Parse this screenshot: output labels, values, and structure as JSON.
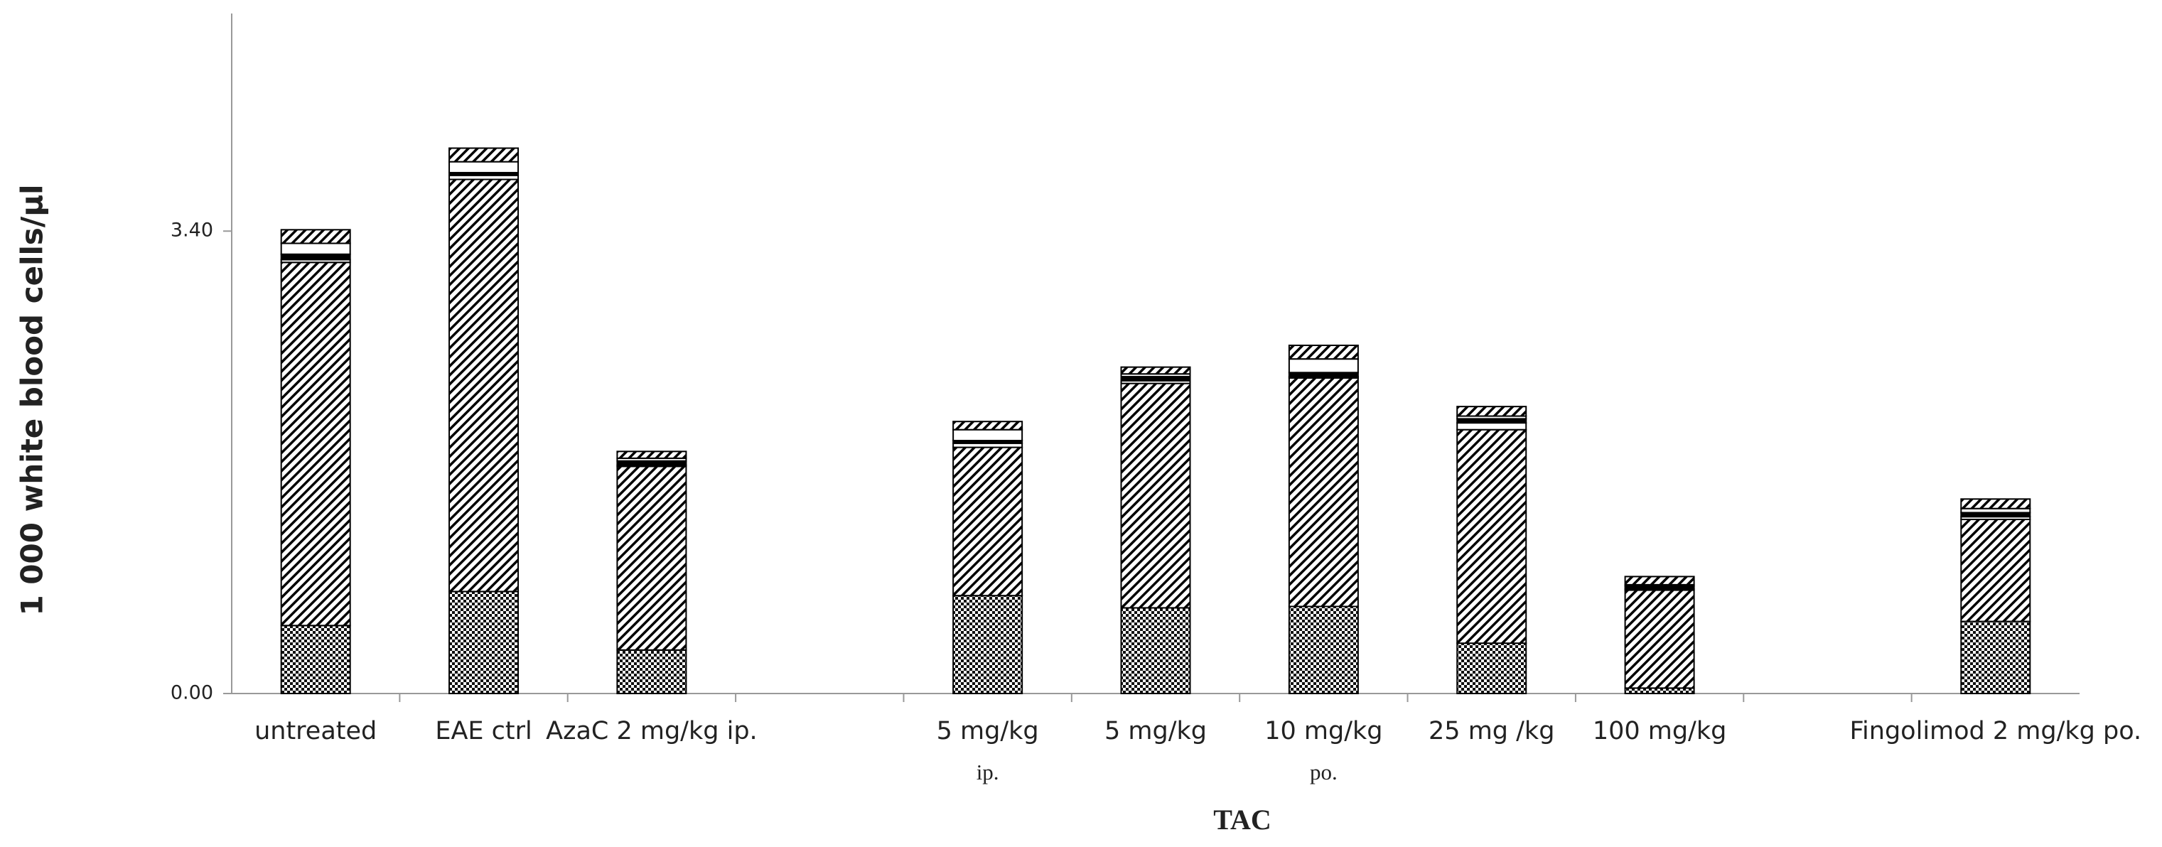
{
  "chart_data": {
    "type": "stacked-bar",
    "y_label": "1 000 white blood cells/µl",
    "x_label": "TAC",
    "categories": [
      "untreated",
      "EAE ctrl",
      "AzaC 2 mg/kg ip.",
      null,
      "5 mg/kg",
      "5 mg/kg",
      "10 mg/kg",
      "25 mg /kg",
      "100 mg/kg",
      null,
      "Fingolimod 2 mg/kg po."
    ],
    "category_sublabels": [
      null,
      null,
      null,
      null,
      "ip.",
      null,
      "po.",
      null,
      null,
      null,
      null
    ],
    "series": [
      {
        "color": "#000000",
        "pattern": "crosshatch",
        "values": [
          0.5,
          0.75,
          0.32,
          null,
          0.72,
          0.63,
          0.64,
          0.37,
          0.04,
          null,
          0.53
        ]
      },
      {
        "color": "#000000",
        "pattern": "diagonal",
        "values": [
          2.67,
          3.03,
          1.35,
          null,
          1.09,
          1.65,
          1.68,
          1.57,
          0.72,
          null,
          0.75
        ]
      },
      {
        "color": "#ffffff",
        "pattern": "none",
        "values": [
          0.02,
          0.03,
          0.01,
          null,
          0.03,
          0.02,
          0.01,
          0.05,
          0.01,
          null,
          0.02
        ]
      },
      {
        "color": "#000000",
        "pattern": "none",
        "values": [
          0.04,
          0.02,
          0.03,
          null,
          0.02,
          0.03,
          0.03,
          0.03,
          0.02,
          null,
          0.03
        ]
      },
      {
        "color": "#ffffff",
        "pattern": "none",
        "values": [
          0.08,
          0.08,
          0.02,
          null,
          0.08,
          0.02,
          0.1,
          0.02,
          0.01,
          null,
          0.03
        ]
      },
      {
        "color": "#000000",
        "pattern": "diagonal",
        "values": [
          0.1,
          0.1,
          0.05,
          null,
          0.06,
          0.05,
          0.1,
          0.07,
          0.06,
          null,
          0.07
        ]
      }
    ],
    "ylim": [
      0,
      5
    ],
    "yticks": [
      {
        "value": 0,
        "label": "0.00"
      },
      {
        "value": 3.4,
        "label": "3.40"
      }
    ],
    "grid": false
  }
}
